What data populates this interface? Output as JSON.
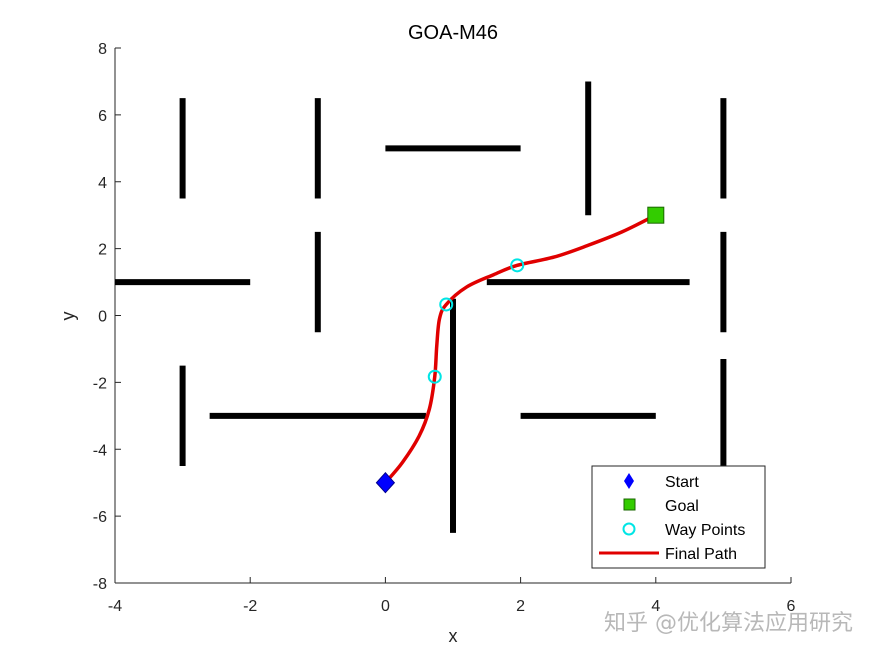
{
  "chart_data": {
    "type": "scatter",
    "title": "GOA-M46",
    "xlabel": "x",
    "ylabel": "y",
    "xlim": [
      -4,
      6
    ],
    "ylim": [
      -8,
      8
    ],
    "xticks": [
      -4,
      -2,
      0,
      2,
      4,
      6
    ],
    "yticks": [
      -8,
      -6,
      -4,
      -2,
      0,
      2,
      4,
      6,
      8
    ],
    "obstacles": [
      {
        "x1": -3,
        "y1": 3.5,
        "x2": -3,
        "y2": 6.5
      },
      {
        "x1": -1,
        "y1": 3.5,
        "x2": -1,
        "y2": 6.5
      },
      {
        "x1": -1,
        "y1": -0.5,
        "x2": -1,
        "y2": 2.5
      },
      {
        "x1": -4,
        "y1": 1,
        "x2": -2,
        "y2": 1
      },
      {
        "x1": 0,
        "y1": 5,
        "x2": 2,
        "y2": 5
      },
      {
        "x1": 3,
        "y1": 3,
        "x2": 3,
        "y2": 7
      },
      {
        "x1": 5,
        "y1": 3.5,
        "x2": 5,
        "y2": 6.5
      },
      {
        "x1": 5,
        "y1": -0.5,
        "x2": 5,
        "y2": 2.5
      },
      {
        "x1": 1.5,
        "y1": 1,
        "x2": 4.5,
        "y2": 1
      },
      {
        "x1": 1,
        "y1": -6.5,
        "x2": 1,
        "y2": 0.5
      },
      {
        "x1": -2.6,
        "y1": -3,
        "x2": 0.6,
        "y2": -3
      },
      {
        "x1": -3,
        "y1": -4.5,
        "x2": -3,
        "y2": -1.5
      },
      {
        "x1": 2,
        "y1": -3,
        "x2": 4,
        "y2": -3
      },
      {
        "x1": 5,
        "y1": -4.5,
        "x2": 5,
        "y2": -1.3
      }
    ],
    "start": {
      "x": 0,
      "y": -5
    },
    "goal": {
      "x": 4,
      "y": 3
    },
    "waypoints": [
      {
        "x": 0.73,
        "y": -1.83
      },
      {
        "x": 0.9,
        "y": 0.33
      },
      {
        "x": 1.95,
        "y": 1.5
      }
    ],
    "path": [
      [
        0,
        -5
      ],
      [
        0.25,
        -4.4
      ],
      [
        0.5,
        -3.6
      ],
      [
        0.65,
        -2.8
      ],
      [
        0.73,
        -1.83
      ],
      [
        0.76,
        -0.9
      ],
      [
        0.8,
        -0.1
      ],
      [
        0.9,
        0.33
      ],
      [
        1.2,
        0.85
      ],
      [
        1.6,
        1.22
      ],
      [
        1.95,
        1.5
      ],
      [
        2.5,
        1.75
      ],
      [
        3.0,
        2.1
      ],
      [
        3.5,
        2.5
      ],
      [
        4,
        3
      ]
    ],
    "legend": {
      "position": "bottom-right",
      "entries": [
        "Start",
        "Goal",
        "Way Points",
        "Final Path"
      ]
    },
    "colors": {
      "start": "#0000ff",
      "goal": "#33cc00",
      "waypoints": "#00e5e5",
      "path": "#e00000",
      "obstacle": "#000000"
    }
  },
  "watermark": "知乎 @优化算法应用研究"
}
